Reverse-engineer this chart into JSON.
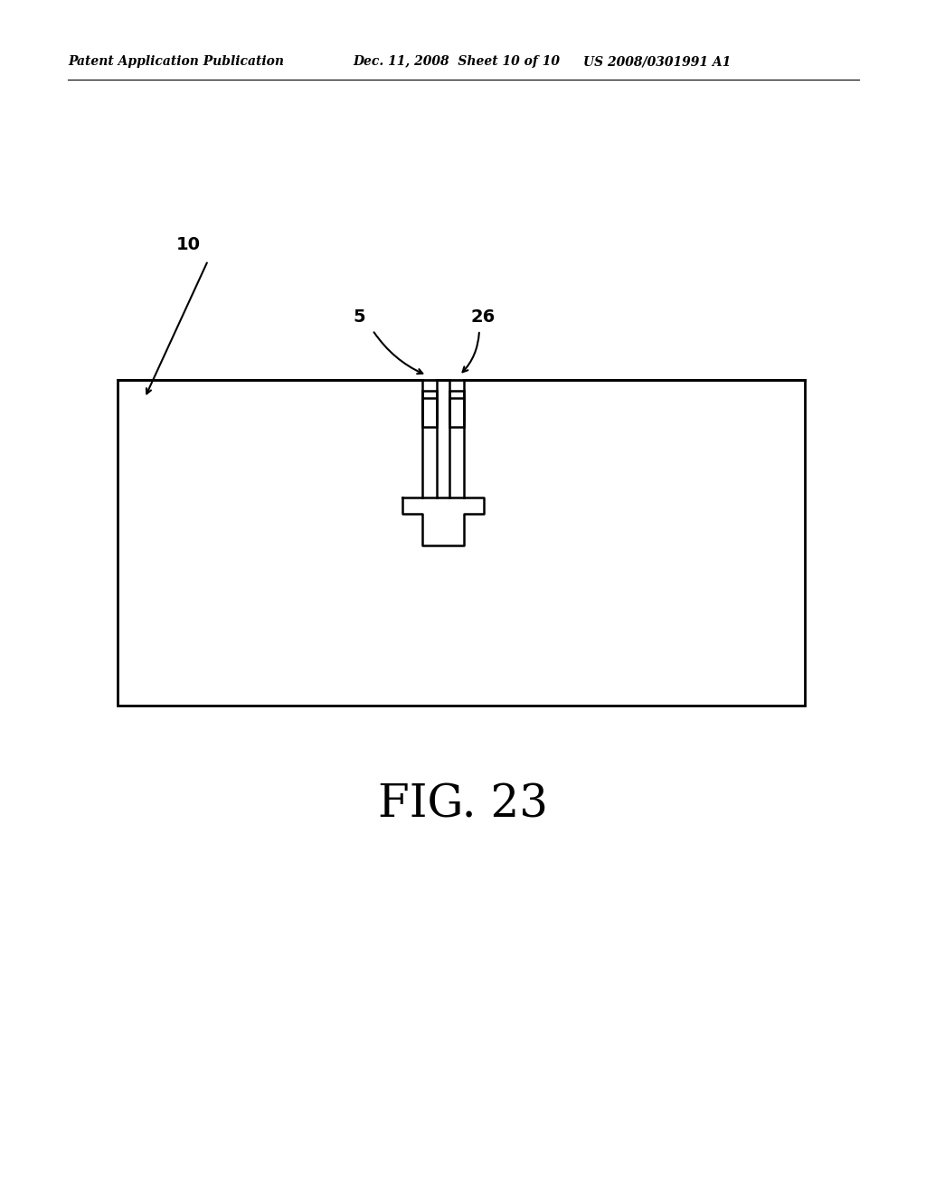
{
  "background_color": "#ffffff",
  "header_left": "Patent Application Publication",
  "header_mid": "Dec. 11, 2008  Sheet 10 of 10",
  "header_right": "US 2008/0301991 A1",
  "fig_label": "FIG. 23",
  "label_10": "10",
  "label_5": "5",
  "label_26": "26"
}
